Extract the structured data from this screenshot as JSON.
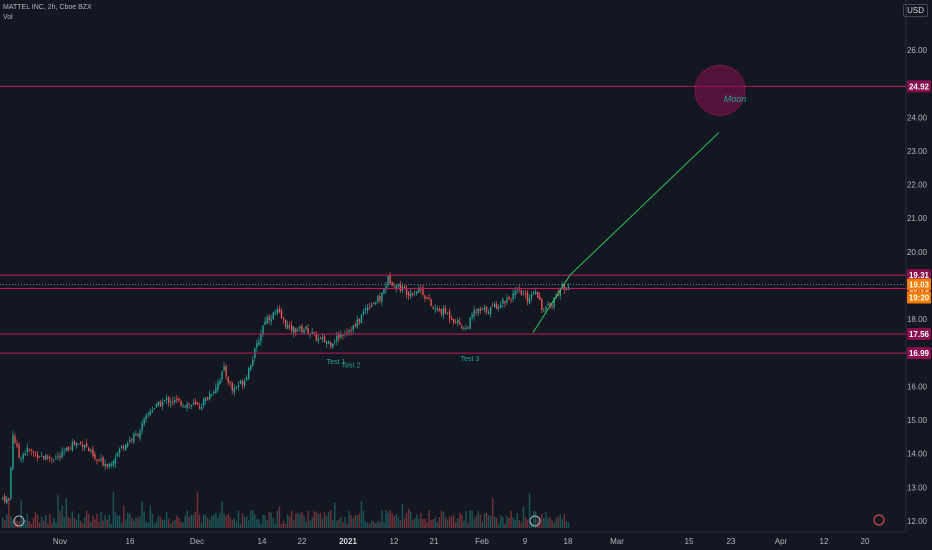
{
  "header": {
    "symbol_line": "MATTEL INC, 2h, Cboe BZX",
    "volume_label": "Vol",
    "currency": "USD"
  },
  "colors": {
    "background": "#131722",
    "up": "#26a69a",
    "down": "#ef5350",
    "level_line": "#c2185b",
    "trend_line": "#2ec45b",
    "current_price": "#f57c00"
  },
  "chart_data": {
    "type": "candlestick",
    "title": "",
    "ylim": [
      11.8,
      27.2
    ],
    "y_ticks": [
      12.0,
      13.0,
      14.0,
      15.0,
      16.0,
      17.0,
      18.0,
      19.0,
      20.0,
      21.0,
      22.0,
      23.0,
      24.0,
      25.0,
      26.0
    ],
    "x_ticks": [
      {
        "label": "Nov",
        "bold": false
      },
      {
        "label": "16",
        "bold": false
      },
      {
        "label": "Dec",
        "bold": false
      },
      {
        "label": "14",
        "bold": false
      },
      {
        "label": "22",
        "bold": false
      },
      {
        "label": "2021",
        "bold": true
      },
      {
        "label": "12",
        "bold": false
      },
      {
        "label": "21",
        "bold": false
      },
      {
        "label": "Feb",
        "bold": false
      },
      {
        "label": "9",
        "bold": false
      },
      {
        "label": "18",
        "bold": false
      },
      {
        "label": "Mar",
        "bold": false
      },
      {
        "label": "15",
        "bold": false
      },
      {
        "label": "23",
        "bold": false
      },
      {
        "label": "Apr",
        "bold": false
      },
      {
        "label": "12",
        "bold": false
      },
      {
        "label": "20",
        "bold": false
      }
    ],
    "price_series": [
      {
        "name": "close (approx.)",
        "points": [
          {
            "i": 0,
            "v": 12.7
          },
          {
            "i": 3,
            "v": 12.6
          },
          {
            "i": 5,
            "v": 14.6
          },
          {
            "i": 8,
            "v": 13.9
          },
          {
            "i": 12,
            "v": 14.1
          },
          {
            "i": 20,
            "v": 13.9
          },
          {
            "i": 28,
            "v": 13.9
          },
          {
            "i": 34,
            "v": 14.3
          },
          {
            "i": 40,
            "v": 14.3
          },
          {
            "i": 45,
            "v": 13.8
          },
          {
            "i": 52,
            "v": 13.7
          },
          {
            "i": 58,
            "v": 14.2
          },
          {
            "i": 66,
            "v": 14.6
          },
          {
            "i": 72,
            "v": 15.3
          },
          {
            "i": 80,
            "v": 15.6
          },
          {
            "i": 88,
            "v": 15.5
          },
          {
            "i": 96,
            "v": 15.4
          },
          {
            "i": 103,
            "v": 15.9
          },
          {
            "i": 108,
            "v": 16.5
          },
          {
            "i": 112,
            "v": 15.9
          },
          {
            "i": 118,
            "v": 16.2
          },
          {
            "i": 124,
            "v": 17.2
          },
          {
            "i": 128,
            "v": 18.0
          },
          {
            "i": 134,
            "v": 18.2
          },
          {
            "i": 140,
            "v": 17.7
          },
          {
            "i": 148,
            "v": 17.7
          },
          {
            "i": 154,
            "v": 17.4
          },
          {
            "i": 160,
            "v": 17.3
          },
          {
            "i": 166,
            "v": 17.6
          },
          {
            "i": 172,
            "v": 17.8
          },
          {
            "i": 178,
            "v": 18.4
          },
          {
            "i": 184,
            "v": 18.6
          },
          {
            "i": 188,
            "v": 19.2
          },
          {
            "i": 192,
            "v": 19.0
          },
          {
            "i": 198,
            "v": 18.8
          },
          {
            "i": 204,
            "v": 18.9
          },
          {
            "i": 210,
            "v": 18.3
          },
          {
            "i": 216,
            "v": 18.2
          },
          {
            "i": 222,
            "v": 17.9
          },
          {
            "i": 226,
            "v": 17.7
          },
          {
            "i": 230,
            "v": 18.2
          },
          {
            "i": 238,
            "v": 18.3
          },
          {
            "i": 246,
            "v": 18.6
          },
          {
            "i": 252,
            "v": 18.8
          },
          {
            "i": 256,
            "v": 18.6
          },
          {
            "i": 260,
            "v": 18.9
          },
          {
            "i": 264,
            "v": 18.2
          },
          {
            "i": 268,
            "v": 18.5
          },
          {
            "i": 272,
            "v": 18.9
          },
          {
            "i": 276,
            "v": 19.03
          }
        ]
      }
    ],
    "volume_bars": 277,
    "horizontal_levels": [
      {
        "value": 24.92,
        "label": "24.92"
      },
      {
        "value": 19.31,
        "label": "19.31"
      },
      {
        "value": 18.91,
        "label": "18.91"
      },
      {
        "value": 17.56,
        "label": "17.56"
      },
      {
        "value": 16.99,
        "label": "16.99"
      }
    ],
    "current_price": {
      "value": 19.03,
      "label": "19.03",
      "countdown": "19:20"
    },
    "trend_lines": [
      {
        "from": {
          "x": "Feb 9",
          "y": 17.6
        },
        "to": {
          "x": "Feb 18",
          "y": 19.31
        }
      },
      {
        "from": {
          "x": "Feb 18",
          "y": 19.31
        },
        "to": {
          "x": "Mar 23",
          "y": 23.55
        }
      }
    ],
    "annotations": [
      {
        "text": "Test 1",
        "x": "Dec 31",
        "y": 16.75
      },
      {
        "text": "Test 2",
        "x": "Jan 4",
        "y": 16.65
      },
      {
        "text": "Test 3",
        "x": "Jan 27",
        "y": 16.85
      },
      {
        "text": "Moon",
        "x": "Mar 22",
        "y": 24.55
      }
    ],
    "grid": false,
    "legend": "top-left"
  }
}
